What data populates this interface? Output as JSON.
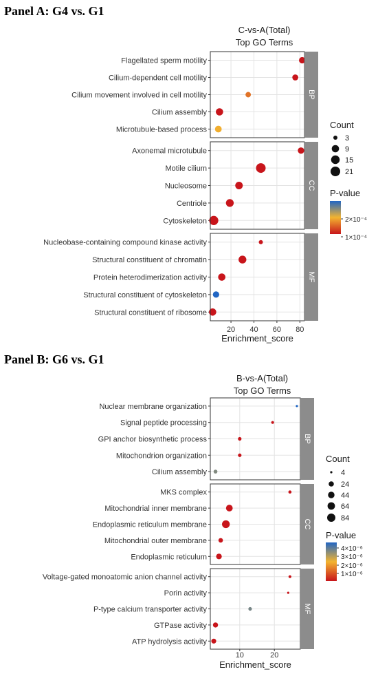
{
  "panels": [
    {
      "heading": "Panel A: G4 vs. G1"
    },
    {
      "heading": "Panel B: G6 vs. G1"
    }
  ],
  "chart_data": [
    {
      "type": "scatter",
      "title": "C-vs-A(Total)",
      "subtitle": "Top GO Terms",
      "xlabel": "Enrichment_score",
      "xlim": [
        2,
        84
      ],
      "xticks": [
        20,
        40,
        60,
        80
      ],
      "grid": true,
      "legend_position": "right",
      "size_legend": {
        "title": "Count",
        "values": [
          3,
          9,
          15,
          21
        ]
      },
      "color_legend": {
        "title": "P-value",
        "ticks": [
          "2×10⁻⁴",
          "1×10⁻⁴"
        ],
        "colors": {
          "low": "#c8151b",
          "mid": "#f3b430",
          "high": "#2166c4"
        }
      },
      "groups": [
        {
          "name": "BP",
          "terms": [
            {
              "term": "Flagellated sperm motility",
              "x": 82,
              "count": 6,
              "p": 1e-05
            },
            {
              "term": "Cilium-dependent cell motility",
              "x": 76,
              "count": 5,
              "p": 1e-05
            },
            {
              "term": "Cilium movement involved in cell motility",
              "x": 35,
              "count": 4,
              "p": 9e-05
            },
            {
              "term": "Cilium assembly",
              "x": 10,
              "count": 9,
              "p": 1e-05
            },
            {
              "term": "Microtubule-based process",
              "x": 9,
              "count": 7,
              "p": 0.00014
            }
          ]
        },
        {
          "name": "CC",
          "terms": [
            {
              "term": "Axonemal microtubule",
              "x": 81,
              "count": 6,
              "p": 1e-05
            },
            {
              "term": "Motile cilium",
              "x": 46,
              "count": 21,
              "p": 1e-05
            },
            {
              "term": "Nucleosome",
              "x": 27,
              "count": 10,
              "p": 1e-05
            },
            {
              "term": "Centriole",
              "x": 19,
              "count": 11,
              "p": 1e-05
            },
            {
              "term": "Cytoskeleton",
              "x": 5,
              "count": 18,
              "p": 1e-05
            }
          ]
        },
        {
          "name": "MF",
          "terms": [
            {
              "term": "Nucleobase-containing compound kinase activity",
              "x": 46,
              "count": 3,
              "p": 1e-05
            },
            {
              "term": "Structural constituent of chromatin",
              "x": 30,
              "count": 11,
              "p": 1e-05
            },
            {
              "term": "Protein heterodimerization activity",
              "x": 12,
              "count": 9,
              "p": 1e-05
            },
            {
              "term": "Structural constituent of cytoskeleton",
              "x": 7,
              "count": 6,
              "p": 0.00028
            },
            {
              "term": "Structural constituent of ribosome",
              "x": 4,
              "count": 9,
              "p": 1e-05
            }
          ]
        }
      ]
    },
    {
      "type": "scatter",
      "title": "B-vs-A(Total)",
      "subtitle": "Top GO Terms",
      "xlabel": "Enrichment_score",
      "xlim": [
        1.5,
        27.5
      ],
      "xticks": [
        10,
        20
      ],
      "grid": true,
      "legend_position": "right",
      "size_legend": {
        "title": "Count",
        "values": [
          4,
          24,
          44,
          64,
          84
        ]
      },
      "color_legend": {
        "title": "P-value",
        "ticks": [
          "4×10⁻⁶",
          "3×10⁻⁶",
          "2×10⁻⁶",
          "1×10⁻⁶"
        ],
        "colors": {
          "low": "#c8151b",
          "mid": "#f3b430",
          "high": "#2166c4"
        }
      },
      "groups": [
        {
          "name": "BP",
          "terms": [
            {
              "term": "Nuclear membrane organization",
              "x": 26.5,
              "count": 4,
              "p": 4.2e-06
            },
            {
              "term": "Signal peptide processing",
              "x": 19.5,
              "count": 5,
              "p": 3e-07
            },
            {
              "term": "GPI anchor biosynthetic process",
              "x": 10,
              "count": 8,
              "p": 3e-07
            },
            {
              "term": "Mitochondrion organization",
              "x": 10,
              "count": 8,
              "p": 3e-07
            },
            {
              "term": "Cilium assembly",
              "x": 3,
              "count": 10,
              "p": 3.3e-06
            }
          ]
        },
        {
          "name": "CC",
          "terms": [
            {
              "term": "MKS complex",
              "x": 24.5,
              "count": 6,
              "p": 3e-07
            },
            {
              "term": "Mitochondrial inner membrane",
              "x": 7,
              "count": 48,
              "p": 3e-07
            },
            {
              "term": "Endoplasmic reticulum membrane",
              "x": 6,
              "count": 72,
              "p": 3e-07
            },
            {
              "term": "Mitochondrial outer membrane",
              "x": 4.5,
              "count": 16,
              "p": 3e-07
            },
            {
              "term": "Endoplasmic reticulum",
              "x": 4,
              "count": 30,
              "p": 3e-07
            }
          ]
        },
        {
          "name": "MF",
          "terms": [
            {
              "term": "Voltage-gated monoatomic anion channel activity",
              "x": 24.5,
              "count": 5,
              "p": 3e-07
            },
            {
              "term": "Porin activity",
              "x": 24,
              "count": 4,
              "p": 3e-07
            },
            {
              "term": "P-type calcium transporter activity",
              "x": 13,
              "count": 8,
              "p": 3.4e-06
            },
            {
              "term": "GTPase activity",
              "x": 3,
              "count": 22,
              "p": 3e-07
            },
            {
              "term": "ATP hydrolysis activity",
              "x": 2.5,
              "count": 20,
              "p": 3e-07
            }
          ]
        }
      ]
    }
  ]
}
